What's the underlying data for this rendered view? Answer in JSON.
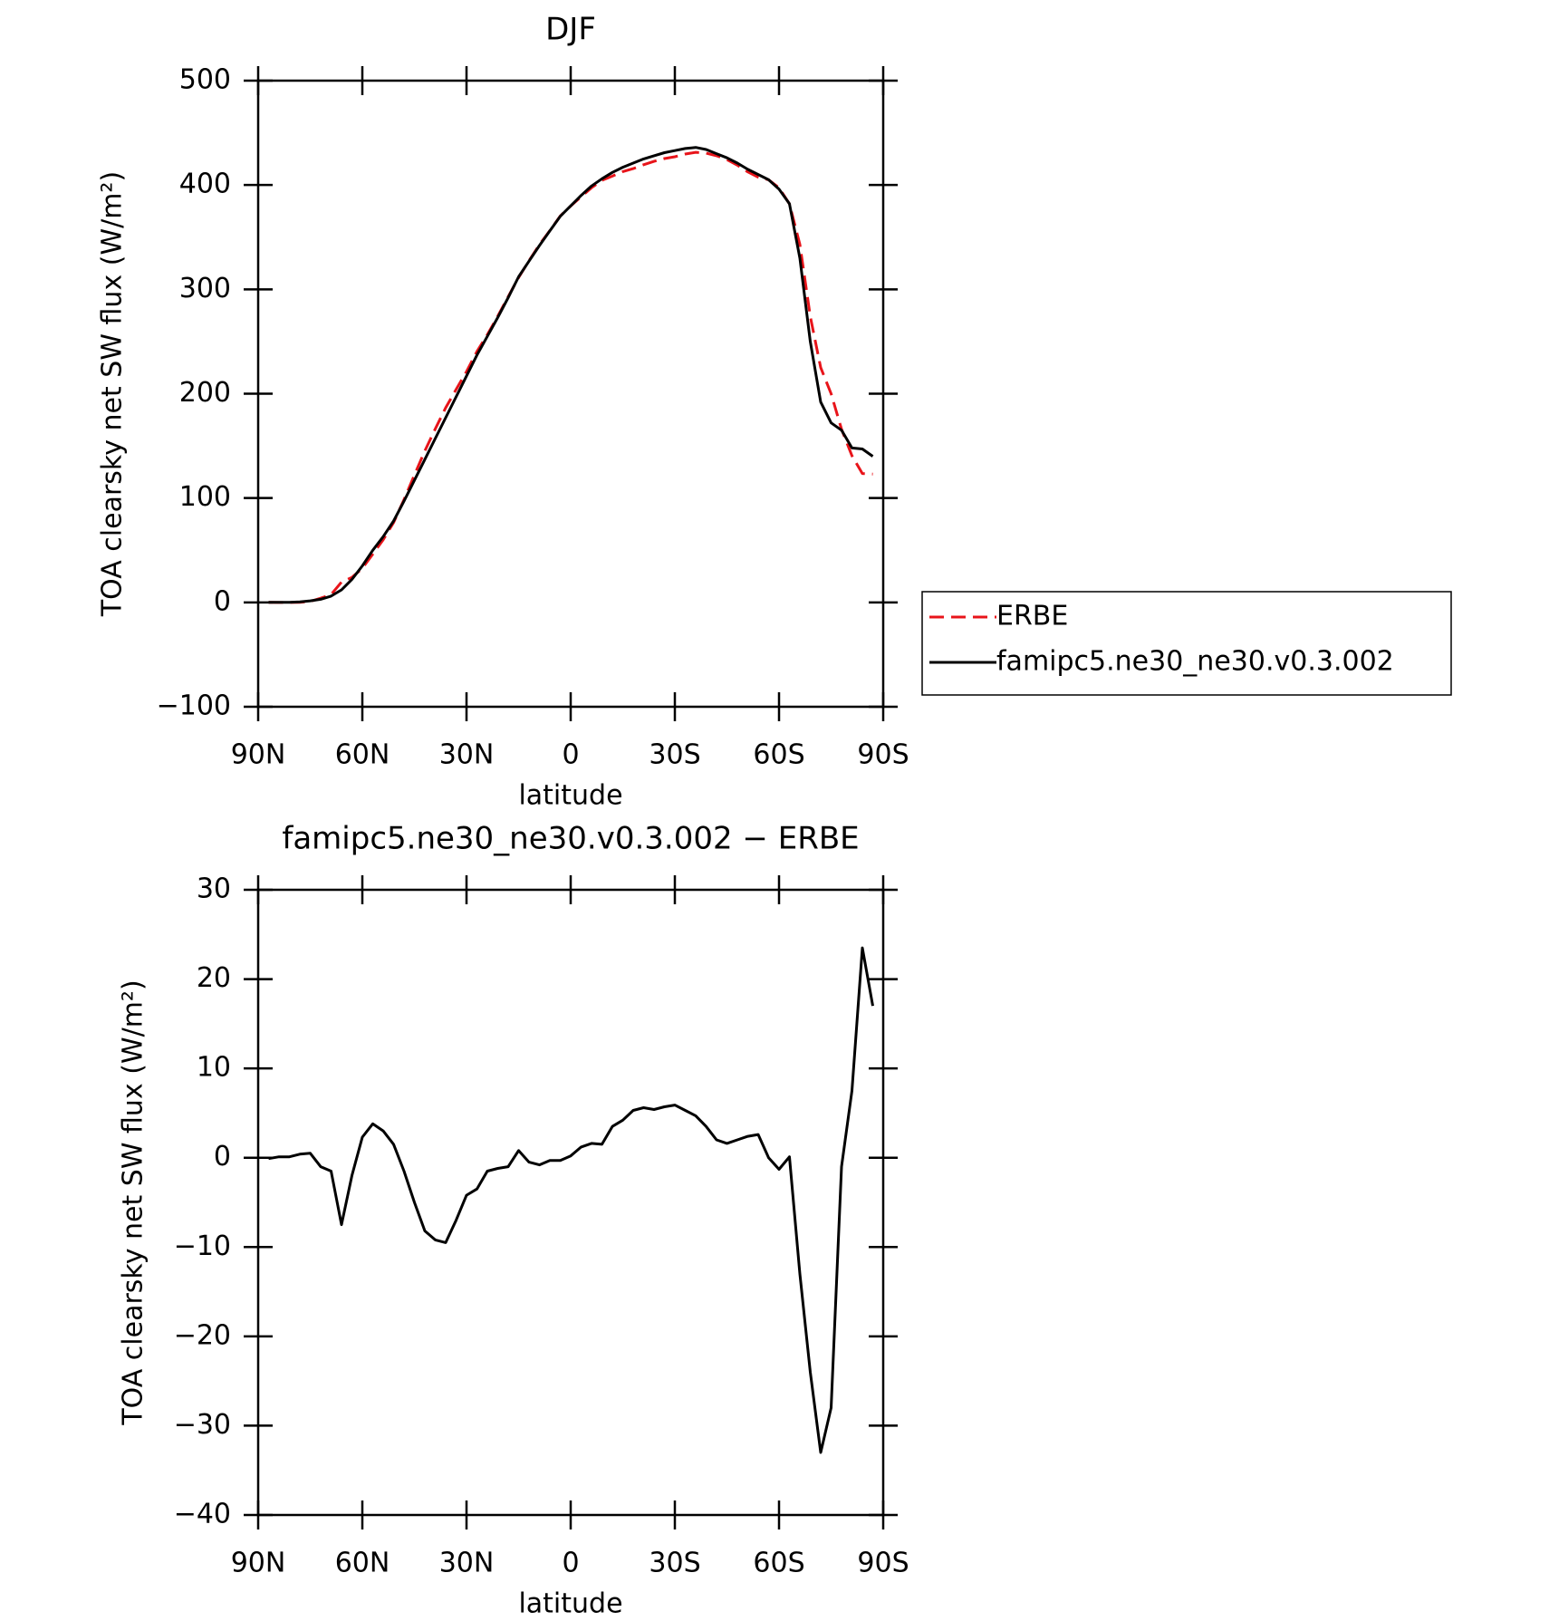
{
  "chart_data": [
    {
      "type": "line",
      "title": "DJF",
      "x_label": "latitude",
      "y_label": "TOA clearsky net SW flux (W/m²)",
      "x": [
        87,
        84,
        81,
        78,
        75,
        72,
        69,
        66,
        63,
        60,
        57,
        54,
        51,
        48,
        45,
        42,
        39,
        36,
        33,
        30,
        27,
        24,
        21,
        18,
        15,
        12,
        9,
        6,
        3,
        0,
        -3,
        -6,
        -9,
        -12,
        -15,
        -18,
        -21,
        -24,
        -27,
        -30,
        -33,
        -36,
        -39,
        -42,
        -45,
        -48,
        -51,
        -54,
        -57,
        -60,
        -63,
        -66,
        -69,
        -72,
        -75,
        -78,
        -81,
        -84,
        -87
      ],
      "xlim": [
        90,
        -90
      ],
      "xticks": [
        {
          "value": 90,
          "label": "90N"
        },
        {
          "value": 60,
          "label": "60N"
        },
        {
          "value": 30,
          "label": "30N"
        },
        0,
        {
          "value": -30,
          "label": "30S"
        },
        {
          "value": -60,
          "label": "60S"
        },
        {
          "value": -90,
          "label": "90S"
        }
      ],
      "ylim": [
        -100,
        500
      ],
      "yticks": [
        {
          "value": -100,
          "label": "−100"
        },
        0,
        100,
        200,
        300,
        400,
        500
      ],
      "legend": "right",
      "series": [
        {
          "name": "ERBE",
          "color": "#e8141a",
          "dashed": true,
          "values": [
            0.1,
            -0.1,
            -0.1,
            0.1,
            1.0,
            4.0,
            7.5,
            19.5,
            24,
            32.7,
            46.2,
            60,
            76.5,
            98.5,
            122,
            145.2,
            166.2,
            186.5,
            204,
            221.2,
            240.5,
            256.5,
            274.2,
            293,
            311.2,
            327.5,
            342.8,
            356.3,
            370.3,
            379.8,
            388.8,
            397.4,
            404.5,
            408.5,
            412.8,
            415.7,
            419.4,
            422.6,
            425.3,
            427.1,
            429.7,
            431.3,
            430.5,
            428,
            424.4,
            419,
            412.6,
            407.4,
            405,
            397.3,
            381.9,
            343,
            274,
            225,
            200,
            166,
            140.5,
            123.5,
            123
          ]
        },
        {
          "name": "famipc5.ne30_ne30.v0.3.002",
          "color": "#000000",
          "dashed": false,
          "values": [
            0,
            0,
            0,
            0.5,
            1.5,
            3,
            6,
            12,
            22,
            35,
            50,
            63,
            78,
            97,
            117,
            137,
            157,
            177,
            197,
            217,
            237,
            255,
            273,
            292,
            312,
            327,
            342,
            356,
            370,
            380,
            390,
            399,
            406,
            412,
            417,
            421,
            425,
            428,
            431,
            433,
            435,
            436,
            434,
            430,
            426,
            421,
            415,
            410,
            405,
            396,
            382,
            330,
            250,
            192,
            172,
            165,
            148,
            147,
            140
          ]
        }
      ]
    },
    {
      "type": "line",
      "title": "famipc5.ne30_ne30.v0.3.002 − ERBE",
      "x_label": "latitude",
      "y_label": "TOA clearsky net SW flux (W/m²)",
      "x": [
        87,
        84,
        81,
        78,
        75,
        72,
        69,
        66,
        63,
        60,
        57,
        54,
        51,
        48,
        45,
        42,
        39,
        36,
        33,
        30,
        27,
        24,
        21,
        18,
        15,
        12,
        9,
        6,
        3,
        0,
        -3,
        -6,
        -9,
        -12,
        -15,
        -18,
        -21,
        -24,
        -27,
        -30,
        -33,
        -36,
        -39,
        -42,
        -45,
        -48,
        -51,
        -54,
        -57,
        -60,
        -63,
        -66,
        -69,
        -72,
        -75,
        -78,
        -81,
        -84,
        -87
      ],
      "xlim": [
        90,
        -90
      ],
      "xticks": [
        {
          "value": 90,
          "label": "90N"
        },
        {
          "value": 60,
          "label": "60N"
        },
        {
          "value": 30,
          "label": "30N"
        },
        0,
        {
          "value": -30,
          "label": "30S"
        },
        {
          "value": -60,
          "label": "60S"
        },
        {
          "value": -90,
          "label": "90S"
        }
      ],
      "ylim": [
        -40,
        30
      ],
      "yticks": [
        {
          "value": -40,
          "label": "−40"
        },
        {
          "value": -30,
          "label": "−30"
        },
        {
          "value": -20,
          "label": "−20"
        },
        {
          "value": -10,
          "label": "−10"
        },
        0,
        10,
        20,
        30
      ],
      "series": [
        {
          "color": "#000000",
          "dashed": false,
          "values": [
            -0.1,
            0.1,
            0.1,
            0.4,
            0.5,
            -1.0,
            -1.5,
            -7.5,
            -2,
            2.3,
            3.8,
            3,
            1.5,
            -1.5,
            -5,
            -8.2,
            -9.2,
            -9.5,
            -7,
            -4.2,
            -3.5,
            -1.5,
            -1.2,
            -1.0,
            0.8,
            -0.5,
            -0.8,
            -0.3,
            -0.3,
            0.2,
            1.2,
            1.6,
            1.5,
            3.5,
            4.2,
            5.3,
            5.6,
            5.4,
            5.7,
            5.9,
            5.3,
            4.7,
            3.5,
            2.0,
            1.6,
            2.0,
            2.4,
            2.6,
            0,
            -1.3,
            0.1,
            -13,
            -24,
            -33,
            -28,
            -1,
            7.5,
            23.5,
            17
          ]
        }
      ]
    }
  ]
}
